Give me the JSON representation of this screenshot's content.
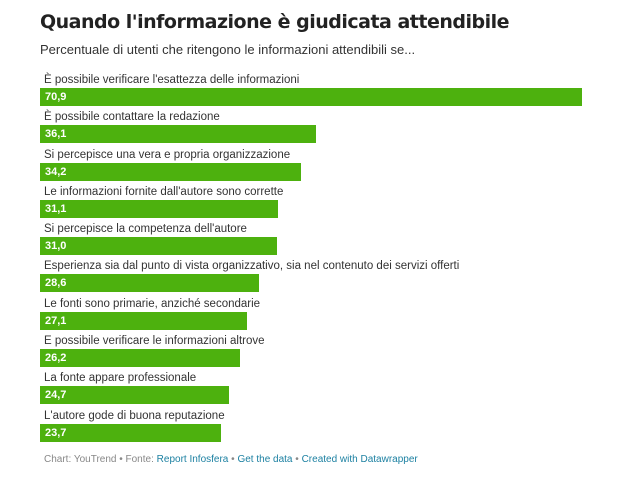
{
  "chart_data": {
    "type": "bar",
    "orientation": "horizontal",
    "title": "Quando l'informazione è giudicata attendibile",
    "subtitle": "Percentuale di utenti che ritengono le informazioni attendibili se...",
    "categories": [
      "È possibile verificare l'esattezza delle informazioni",
      "È possibile contattare la redazione",
      "Si percepisce una vera e propria organizzazione",
      "Le informazioni fornite dall'autore sono corrette",
      "Si percepisce la competenza dell'autore",
      "Esperienza sia dal punto di vista organizzativo, sia nel contenuto dei servizi offerti",
      "Le fonti sono primarie, anziché secondarie",
      "E possibile verificare le informazioni altrove",
      "La fonte appare professionale",
      "L'autore gode di buona reputazione"
    ],
    "values": [
      70.9,
      36.1,
      34.2,
      31.1,
      31.0,
      28.6,
      27.1,
      26.2,
      24.7,
      23.7
    ],
    "value_labels": [
      "70,9",
      "36,1",
      "34,2",
      "31,1",
      "31,0",
      "28,6",
      "27,1",
      "26,2",
      "24,7",
      "23,7"
    ],
    "xlim": [
      0,
      70.9
    ],
    "grid": false,
    "bar_color": "#4db10e",
    "value_label_color": "#ffffff"
  },
  "footer": {
    "prefix": "Chart: YouTrend • Fonte:",
    "source_link": "Report Infosfera",
    "separator": "•",
    "data_link": "Get the data",
    "created_link": "Created with Datawrapper"
  },
  "colors": {
    "link": "#1d81a2",
    "footer_text": "#888888"
  }
}
